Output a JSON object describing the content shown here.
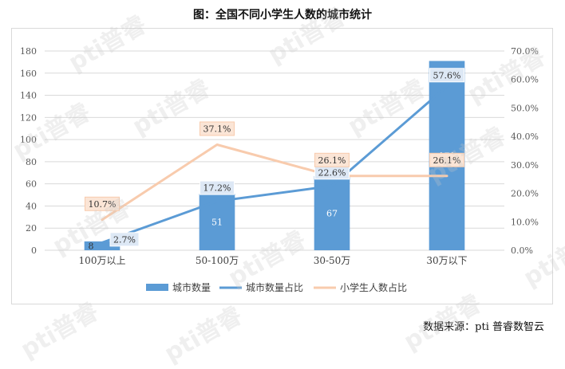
{
  "watermark": "pti普睿",
  "chart_data": {
    "type": "bar",
    "title": "图：全国不同小学生人数的城市统计",
    "categories": [
      "100万以上",
      "50-100万",
      "30-50万",
      "30万以下"
    ],
    "series": [
      {
        "name": "城市数量",
        "kind": "bar",
        "axis": "left",
        "values": [
          8,
          51,
          67,
          171
        ],
        "labels": [
          "8",
          "51",
          "67",
          "171"
        ],
        "color": "#5b9bd5"
      },
      {
        "name": "城市数量占比",
        "kind": "line",
        "axis": "right",
        "values": [
          2.7,
          17.2,
          22.6,
          57.6
        ],
        "labels": [
          "2.7%",
          "17.2%",
          "22.6%",
          "57.6%"
        ],
        "color": "#5b9bd5"
      },
      {
        "name": "小学生人数占比",
        "kind": "line",
        "axis": "right",
        "values": [
          10.7,
          37.1,
          26.1,
          26.1
        ],
        "labels": [
          "10.7%",
          "37.1%",
          "26.1%",
          "26.1%"
        ],
        "color": "#f8cbad"
      }
    ],
    "y_left": {
      "min": 0,
      "max": 180,
      "ticks": [
        "0",
        "20",
        "40",
        "60",
        "80",
        "100",
        "120",
        "140",
        "160",
        "180"
      ]
    },
    "y_right": {
      "min": 0,
      "max": 70,
      "ticks": [
        "0.0%",
        "10.0%",
        "20.0%",
        "30.0%",
        "40.0%",
        "50.0%",
        "60.0%",
        "70.0%"
      ]
    },
    "grid": true,
    "legend_position": "bottom"
  },
  "source": "数据来源：pti 普睿数智云"
}
